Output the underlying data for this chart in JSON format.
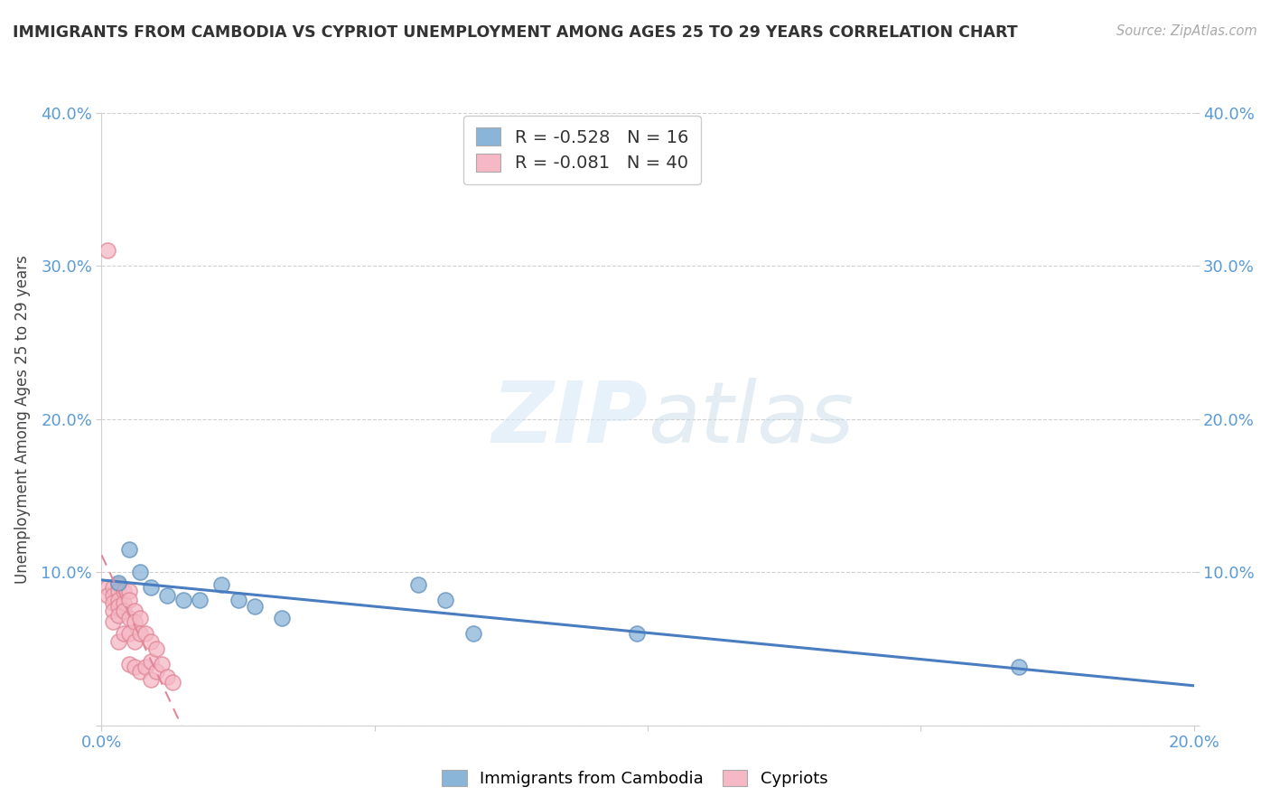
{
  "title": "IMMIGRANTS FROM CAMBODIA VS CYPRIOT UNEMPLOYMENT AMONG AGES 25 TO 29 YEARS CORRELATION CHART",
  "source": "Source: ZipAtlas.com",
  "ylabel": "Unemployment Among Ages 25 to 29 years",
  "xlim": [
    0,
    0.2
  ],
  "ylim": [
    0,
    0.4
  ],
  "xticks": [
    0.0,
    0.05,
    0.1,
    0.15,
    0.2
  ],
  "yticks": [
    0.0,
    0.1,
    0.2,
    0.3,
    0.4
  ],
  "xtick_labels": [
    "0.0%",
    "",
    "",
    "",
    "20.0%"
  ],
  "ytick_labels_left": [
    "",
    "10.0%",
    "20.0%",
    "30.0%",
    "40.0%"
  ],
  "ytick_labels_right": [
    "",
    "10.0%",
    "20.0%",
    "30.0%",
    "40.0%"
  ],
  "background_color": "#ffffff",
  "blue_color": "#8ab4d8",
  "pink_color": "#f5b8c4",
  "blue_edge_color": "#6090bb",
  "pink_edge_color": "#e08898",
  "blue_line_color": "#4a7dc0",
  "pink_line_color": "#e08898",
  "tick_color": "#5b9bd5",
  "R_blue": -0.528,
  "N_blue": 16,
  "R_pink": -0.081,
  "N_pink": 40,
  "legend_label_blue": "Immigrants from Cambodia",
  "legend_label_pink": "Cypriots",
  "blue_points_x": [
    0.003,
    0.005,
    0.007,
    0.009,
    0.012,
    0.015,
    0.018,
    0.022,
    0.025,
    0.028,
    0.033,
    0.058,
    0.063,
    0.068,
    0.098,
    0.168
  ],
  "blue_points_y": [
    0.093,
    0.115,
    0.1,
    0.09,
    0.085,
    0.082,
    0.082,
    0.092,
    0.082,
    0.078,
    0.07,
    0.092,
    0.082,
    0.06,
    0.06,
    0.038
  ],
  "pink_points_x": [
    0.001,
    0.001,
    0.001,
    0.002,
    0.002,
    0.002,
    0.002,
    0.002,
    0.003,
    0.003,
    0.003,
    0.003,
    0.003,
    0.003,
    0.004,
    0.004,
    0.004,
    0.004,
    0.005,
    0.005,
    0.005,
    0.005,
    0.005,
    0.006,
    0.006,
    0.006,
    0.006,
    0.007,
    0.007,
    0.007,
    0.008,
    0.008,
    0.009,
    0.009,
    0.009,
    0.01,
    0.01,
    0.011,
    0.012,
    0.013
  ],
  "pink_points_y": [
    0.31,
    0.09,
    0.085,
    0.09,
    0.085,
    0.08,
    0.075,
    0.068,
    0.092,
    0.088,
    0.082,
    0.078,
    0.072,
    0.055,
    0.088,
    0.08,
    0.075,
    0.06,
    0.088,
    0.082,
    0.07,
    0.06,
    0.04,
    0.075,
    0.068,
    0.055,
    0.038,
    0.07,
    0.06,
    0.035,
    0.06,
    0.038,
    0.055,
    0.042,
    0.03,
    0.05,
    0.035,
    0.04,
    0.032,
    0.028
  ]
}
